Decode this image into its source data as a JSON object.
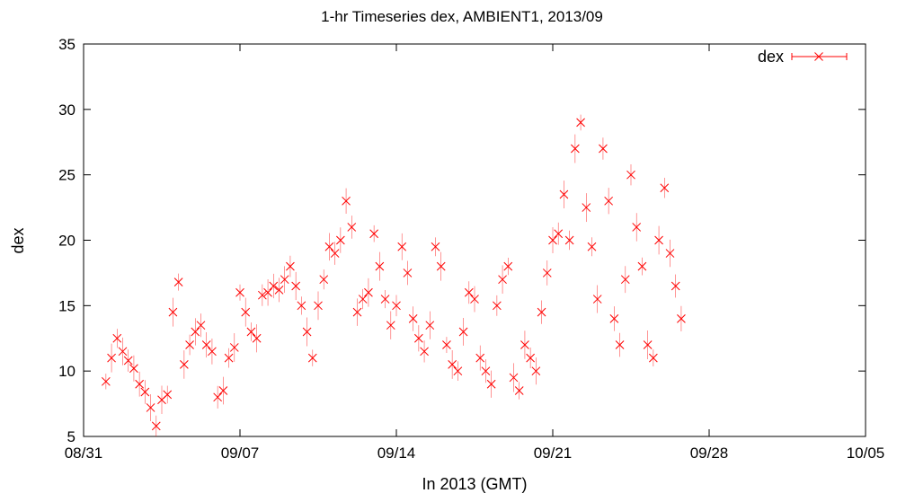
{
  "chart_data": {
    "type": "scatter",
    "title": "1-hr Timeseries dex, AMBIENT1, 2013/09",
    "xlabel": "In 2013 (GMT)",
    "ylabel": "dex",
    "x_ticks": [
      "08/31",
      "09/07",
      "09/14",
      "09/21",
      "09/28",
      "10/05"
    ],
    "x_tick_dates": [
      "2013-08-31",
      "2013-09-07",
      "2013-09-14",
      "2013-09-21",
      "2013-09-28",
      "2013-10-05"
    ],
    "y_ticks": [
      "5",
      "10",
      "15",
      "20",
      "25",
      "30",
      "35"
    ],
    "xlim": [
      "2013-08-31",
      "2013-10-05"
    ],
    "ylim": [
      5,
      35
    ],
    "grid": false,
    "legend_position": "top-right",
    "marker": "x",
    "error_bars": true,
    "color": "#ff0000",
    "series": [
      {
        "name": "dex",
        "points": [
          [
            "2013-09-01 00:00",
            9.2
          ],
          [
            "2013-09-01 06:00",
            11.0
          ],
          [
            "2013-09-01 12:00",
            12.5
          ],
          [
            "2013-09-01 18:00",
            11.5
          ],
          [
            "2013-09-02 00:00",
            10.8
          ],
          [
            "2013-09-02 06:00",
            10.2
          ],
          [
            "2013-09-02 12:00",
            9.0
          ],
          [
            "2013-09-02 18:00",
            8.4
          ],
          [
            "2013-09-03 00:00",
            7.2
          ],
          [
            "2013-09-03 06:00",
            5.8
          ],
          [
            "2013-09-03 12:00",
            7.8
          ],
          [
            "2013-09-03 18:00",
            8.2
          ],
          [
            "2013-09-04 00:00",
            14.5
          ],
          [
            "2013-09-04 06:00",
            16.8
          ],
          [
            "2013-09-04 12:00",
            10.5
          ],
          [
            "2013-09-04 18:00",
            12.0
          ],
          [
            "2013-09-05 00:00",
            13.0
          ],
          [
            "2013-09-05 06:00",
            13.5
          ],
          [
            "2013-09-05 12:00",
            12.0
          ],
          [
            "2013-09-05 18:00",
            11.5
          ],
          [
            "2013-09-06 00:00",
            8.0
          ],
          [
            "2013-09-06 06:00",
            8.5
          ],
          [
            "2013-09-06 12:00",
            11.0
          ],
          [
            "2013-09-06 18:00",
            11.8
          ],
          [
            "2013-09-07 00:00",
            16.0
          ],
          [
            "2013-09-07 06:00",
            14.5
          ],
          [
            "2013-09-07 12:00",
            13.0
          ],
          [
            "2013-09-07 18:00",
            12.5
          ],
          [
            "2013-09-08 00:00",
            15.8
          ],
          [
            "2013-09-08 06:00",
            16.0
          ],
          [
            "2013-09-08 12:00",
            16.5
          ],
          [
            "2013-09-08 18:00",
            16.2
          ],
          [
            "2013-09-09 00:00",
            17.0
          ],
          [
            "2013-09-09 06:00",
            18.0
          ],
          [
            "2013-09-09 12:00",
            16.5
          ],
          [
            "2013-09-09 18:00",
            15.0
          ],
          [
            "2013-09-10 00:00",
            13.0
          ],
          [
            "2013-09-10 06:00",
            11.0
          ],
          [
            "2013-09-10 12:00",
            15.0
          ],
          [
            "2013-09-10 18:00",
            17.0
          ],
          [
            "2013-09-11 00:00",
            19.5
          ],
          [
            "2013-09-11 06:00",
            19.0
          ],
          [
            "2013-09-11 12:00",
            20.0
          ],
          [
            "2013-09-11 18:00",
            23.0
          ],
          [
            "2013-09-12 00:00",
            21.0
          ],
          [
            "2013-09-12 06:00",
            14.5
          ],
          [
            "2013-09-12 12:00",
            15.5
          ],
          [
            "2013-09-12 18:00",
            16.0
          ],
          [
            "2013-09-13 00:00",
            20.5
          ],
          [
            "2013-09-13 06:00",
            18.0
          ],
          [
            "2013-09-13 12:00",
            15.5
          ],
          [
            "2013-09-13 18:00",
            13.5
          ],
          [
            "2013-09-14 00:00",
            15.0
          ],
          [
            "2013-09-14 06:00",
            19.5
          ],
          [
            "2013-09-14 12:00",
            17.5
          ],
          [
            "2013-09-14 18:00",
            14.0
          ],
          [
            "2013-09-15 00:00",
            12.5
          ],
          [
            "2013-09-15 06:00",
            11.5
          ],
          [
            "2013-09-15 12:00",
            13.5
          ],
          [
            "2013-09-15 18:00",
            19.5
          ],
          [
            "2013-09-16 00:00",
            18.0
          ],
          [
            "2013-09-16 06:00",
            12.0
          ],
          [
            "2013-09-16 12:00",
            10.5
          ],
          [
            "2013-09-16 18:00",
            10.0
          ],
          [
            "2013-09-17 00:00",
            13.0
          ],
          [
            "2013-09-17 06:00",
            16.0
          ],
          [
            "2013-09-17 12:00",
            15.5
          ],
          [
            "2013-09-17 18:00",
            11.0
          ],
          [
            "2013-09-18 00:00",
            10.0
          ],
          [
            "2013-09-18 06:00",
            9.0
          ],
          [
            "2013-09-18 12:00",
            15.0
          ],
          [
            "2013-09-18 18:00",
            17.0
          ],
          [
            "2013-09-19 00:00",
            18.0
          ],
          [
            "2013-09-19 06:00",
            9.5
          ],
          [
            "2013-09-19 12:00",
            8.5
          ],
          [
            "2013-09-19 18:00",
            12.0
          ],
          [
            "2013-09-20 00:00",
            11.0
          ],
          [
            "2013-09-20 06:00",
            10.0
          ],
          [
            "2013-09-20 12:00",
            14.5
          ],
          [
            "2013-09-20 18:00",
            17.5
          ],
          [
            "2013-09-21 00:00",
            20.0
          ],
          [
            "2013-09-21 06:00",
            20.5
          ],
          [
            "2013-09-21 12:00",
            23.5
          ],
          [
            "2013-09-21 18:00",
            20.0
          ],
          [
            "2013-09-22 00:00",
            27.0
          ],
          [
            "2013-09-22 06:00",
            29.0
          ],
          [
            "2013-09-22 12:00",
            22.5
          ],
          [
            "2013-09-22 18:00",
            19.5
          ],
          [
            "2013-09-23 00:00",
            15.5
          ],
          [
            "2013-09-23 06:00",
            27.0
          ],
          [
            "2013-09-23 12:00",
            23.0
          ],
          [
            "2013-09-23 18:00",
            14.0
          ],
          [
            "2013-09-24 00:00",
            12.0
          ],
          [
            "2013-09-24 06:00",
            17.0
          ],
          [
            "2013-09-24 12:00",
            25.0
          ],
          [
            "2013-09-24 18:00",
            21.0
          ],
          [
            "2013-09-25 00:00",
            18.0
          ],
          [
            "2013-09-25 06:00",
            12.0
          ],
          [
            "2013-09-25 12:00",
            11.0
          ],
          [
            "2013-09-25 18:00",
            20.0
          ],
          [
            "2013-09-26 00:00",
            24.0
          ],
          [
            "2013-09-26 06:00",
            19.0
          ],
          [
            "2013-09-26 12:00",
            16.5
          ],
          [
            "2013-09-26 18:00",
            14.0
          ]
        ]
      }
    ]
  }
}
